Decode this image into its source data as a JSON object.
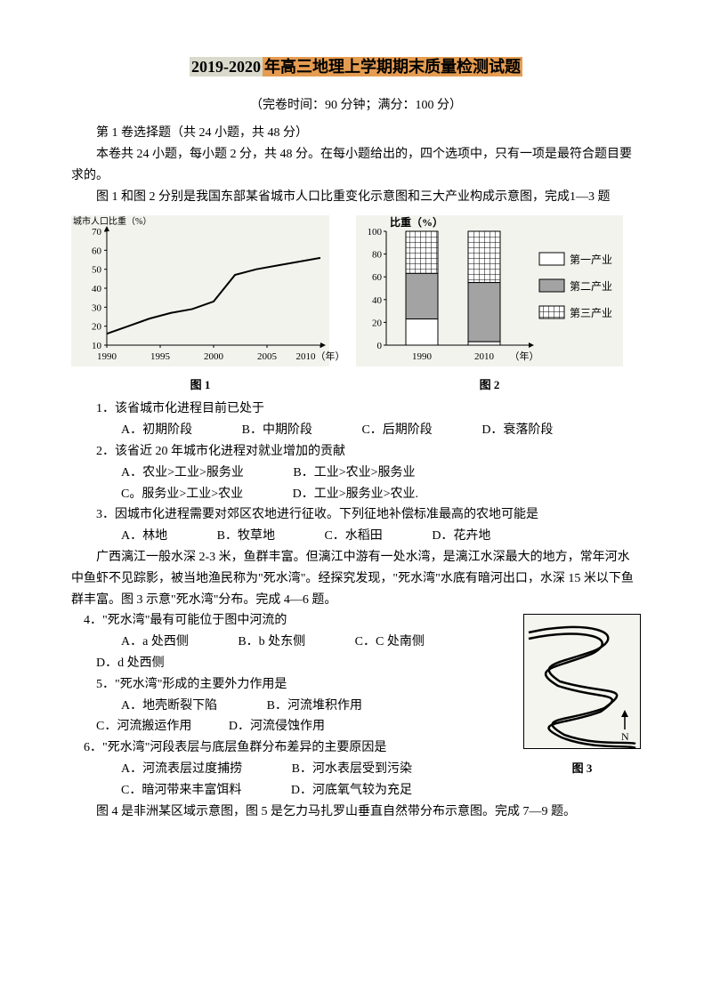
{
  "title": {
    "hl1": "2019-2020",
    "hl2": "年高三地理上学期期末质量检测试题"
  },
  "subtitle": "（完卷时间：90 分钟；满分：100 分）",
  "section1_heading": "第 1 卷选择题（共 24 小题，共 48 分）",
  "intro1": "本卷共 24 小题，每小题 2 分，共 48 分。在每小题给出的，四个选项中，只有一项是最符合题目要求的。",
  "intro2": "图 1 和图 2 分别是我国东部某省城市人口比重变化示意图和三大产业构成示意图，完成1—3 题",
  "fig1": {
    "caption": "图 1",
    "ylabel": "城市人口比重（%）",
    "xlabel_years": [
      "1990",
      "1995",
      "2000",
      "2005",
      "2010（年）"
    ],
    "yticks": [
      10,
      20,
      30,
      40,
      50,
      60,
      70
    ],
    "points": [
      [
        1990,
        16
      ],
      [
        1992,
        20
      ],
      [
        1994,
        24
      ],
      [
        1996,
        27
      ],
      [
        1998,
        29
      ],
      [
        2000,
        33
      ],
      [
        2002,
        47
      ],
      [
        2004,
        50
      ],
      [
        2006,
        52
      ],
      [
        2008,
        54
      ],
      [
        2010,
        56
      ]
    ],
    "bg": "#f3f3ee",
    "line_color": "#000000",
    "axis_color": "#000000"
  },
  "fig2": {
    "caption": "图 2",
    "ylabel": "比重（%）",
    "yticks": [
      0,
      20,
      40,
      60,
      80,
      100
    ],
    "xlabels": [
      "1990",
      "2010",
      "（年）"
    ],
    "legend": [
      "第一产业",
      "第二产业",
      "第三产业"
    ],
    "bar1": {
      "c1": 23,
      "c2": 40,
      "c3": 37
    },
    "bar2": {
      "c1": 3,
      "c2": 52,
      "c3": 45
    },
    "colors": {
      "c1": "#ffffff",
      "c2": "#a3a3a3",
      "c3_pattern": "grid"
    },
    "bg": "#f3f3ee"
  },
  "q1": {
    "stem": "1．该省城市化进程目前已处于",
    "opts": [
      "A．初期阶段",
      "B．中期阶段",
      "C．后期阶段",
      "D．衰落阶段"
    ]
  },
  "q2": {
    "stem": "2．该省近 20 年城市化进程对就业增加的贡献",
    "opts": [
      "A．农业>工业>服务业",
      "B．工业>农业>服务业",
      "C。服务业>工业>农业",
      "D．工业>服务业>农业."
    ]
  },
  "q3": {
    "stem": "3．因城市化进程需要对郊区农地进行征收。下列征地补偿标准最高的农地可能是",
    "opts": [
      "A．林地",
      "B．牧草地",
      "C．水稻田",
      "D．花卉地"
    ]
  },
  "passage2": "广西漓江一般水深 2-3 米，鱼群丰富。但漓江中游有一处水湾，是漓江水深最大的地方，常年河水中鱼虾不见踪影，被当地渔民称为\"死水湾\"。经探究发现，\"死水湾\"水底有暗河出口，水深 15 米以下鱼群丰富。图 3 示意\"死水湾\"分布。完成 4—6 题。",
  "q4": {
    "stem": "4．\"死水湾\"最有可能位于图中河流的",
    "opts": [
      "A．a 处西侧",
      "B．b 处东侧",
      "C．C 处南侧",
      "D．d 处西侧"
    ]
  },
  "q5": {
    "stem": "5．\"死水湾\"形成的主要外力作用是",
    "opts": [
      "A．地壳断裂下陷",
      "B．河流堆积作用",
      "C．河流搬运作用",
      "D．河流侵蚀作用"
    ]
  },
  "q6": {
    "stem": "6．\"死水湾\"河段表层与底层鱼群分布差异的主要原因是",
    "opts": [
      "A．河流表层过度捕捞",
      "B．河水表层受到污染",
      "C．暗河带来丰富饵料",
      "D．河底氧气较为充足"
    ]
  },
  "fig3_caption": "图 3",
  "passage3": "图 4 是非洲某区域示意图，图 5 是乞力马扎罗山垂直自然带分布示意图。完成 7—9 题。"
}
